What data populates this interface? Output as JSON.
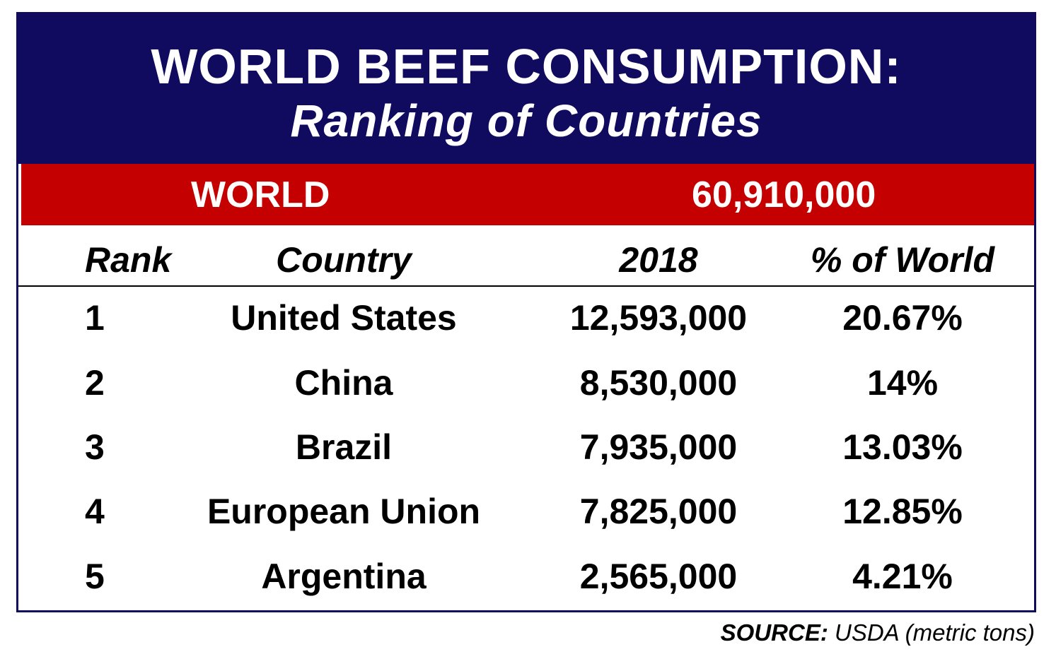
{
  "title": "WORLD BEEF CONSUMPTION:",
  "subtitle": "Ranking of Countries",
  "world": {
    "label": "WORLD",
    "value": "60,910,000"
  },
  "columns": {
    "rank": "Rank",
    "country": "Country",
    "year": "2018",
    "share": "% of World"
  },
  "rows": [
    {
      "rank": "1",
      "country": "United States",
      "value": "12,593,000",
      "share": "20.67%"
    },
    {
      "rank": "2",
      "country": "China",
      "value": "8,530,000",
      "share": "14%"
    },
    {
      "rank": "3",
      "country": "Brazil",
      "value": "7,935,000",
      "share": "13.03%"
    },
    {
      "rank": "4",
      "country": "European Union",
      "value": "7,825,000",
      "share": "12.85%"
    },
    {
      "rank": "5",
      "country": "Argentina",
      "value": "2,565,000",
      "share": "4.21%"
    }
  ],
  "source": {
    "label": "SOURCE:",
    "text": " USDA (metric tons)"
  },
  "colors": {
    "navy": "#110b60",
    "red": "#c40000",
    "text": "#000000",
    "white": "#ffffff"
  },
  "chart_data": {
    "type": "table",
    "title": "WORLD BEEF CONSUMPTION:",
    "subtitle": "Ranking of Countries",
    "total": {
      "label": "WORLD",
      "value": 60910000
    },
    "columns": [
      "Rank",
      "Country",
      "2018",
      "% of World"
    ],
    "rows": [
      [
        1,
        "United States",
        12593000,
        20.67
      ],
      [
        2,
        "China",
        8530000,
        14
      ],
      [
        3,
        "Brazil",
        7935000,
        13.03
      ],
      [
        4,
        "European Union",
        7825000,
        12.85
      ],
      [
        5,
        "Argentina",
        2565000,
        4.21
      ]
    ],
    "source": "SOURCE: USDA (metric tons)"
  }
}
